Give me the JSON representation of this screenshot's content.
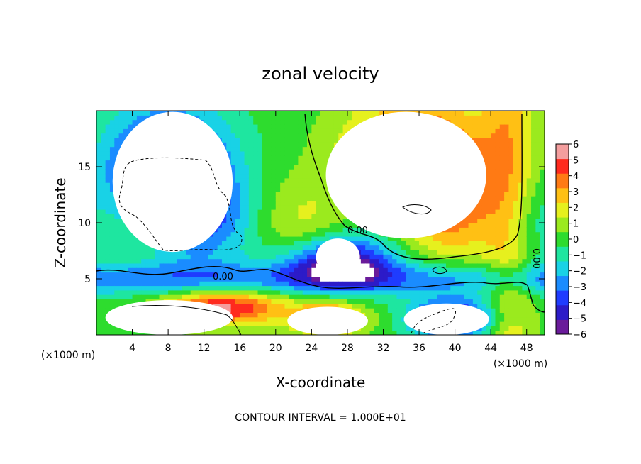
{
  "chart_data": {
    "type": "heatmap",
    "title": "zonal velocity",
    "xlabel": "X-coordinate",
    "ylabel": "Z-coordinate",
    "x_unit_left": "(×1000 m)",
    "x_unit_right": "(×1000 m)",
    "xlim": [
      0,
      50
    ],
    "ylim": [
      0,
      20
    ],
    "x_ticks": [
      4,
      8,
      12,
      16,
      20,
      24,
      28,
      32,
      36,
      40,
      44,
      48
    ],
    "y_ticks": [
      5,
      10,
      15
    ],
    "colorbar": {
      "min": -6,
      "max": 6,
      "ticks": [
        6,
        5,
        4,
        3,
        2,
        1,
        0,
        -1,
        -2,
        -3,
        -4,
        -5,
        -6
      ]
    },
    "contour_labels": [
      "0.00",
      "0.00",
      "0.00"
    ],
    "footer": "CONTOUR INTERVAL = 1.000E+01",
    "colors": {
      "scale": [
        "#6a1b9a",
        "#2c1bc8",
        "#1f3cff",
        "#1a8cff",
        "#19d2e6",
        "#1ee6a0",
        "#2edc2e",
        "#9bea1e",
        "#e6f01e",
        "#ffc014",
        "#ff7a14",
        "#ff2a1e",
        "#f49e9e"
      ],
      "over": "#ffffff"
    },
    "white_regions": [
      {
        "label": "upper-left low (< -6)",
        "x": [
          1.8,
          15.2
        ],
        "z": [
          7.4,
          19.9
        ]
      },
      {
        "label": "upper-right high (> 6)",
        "x": [
          25.6,
          43.5
        ],
        "z": [
          8.6,
          19.9
        ]
      },
      {
        "label": "central bubble",
        "x": [
          24.5,
          29.4
        ],
        "z": [
          5.3,
          8.6
        ]
      },
      {
        "label": "lower-left high (> 6)",
        "x": [
          1.0,
          15.2
        ],
        "z": [
          0,
          3.1
        ]
      },
      {
        "label": "lower-middle high (> 6)",
        "x": [
          21.3,
          30.3
        ],
        "z": [
          0,
          2.5
        ]
      },
      {
        "label": "lower-right low (< -6)",
        "x": [
          34.3,
          43.8
        ],
        "z": [
          0,
          2.8
        ]
      }
    ]
  }
}
